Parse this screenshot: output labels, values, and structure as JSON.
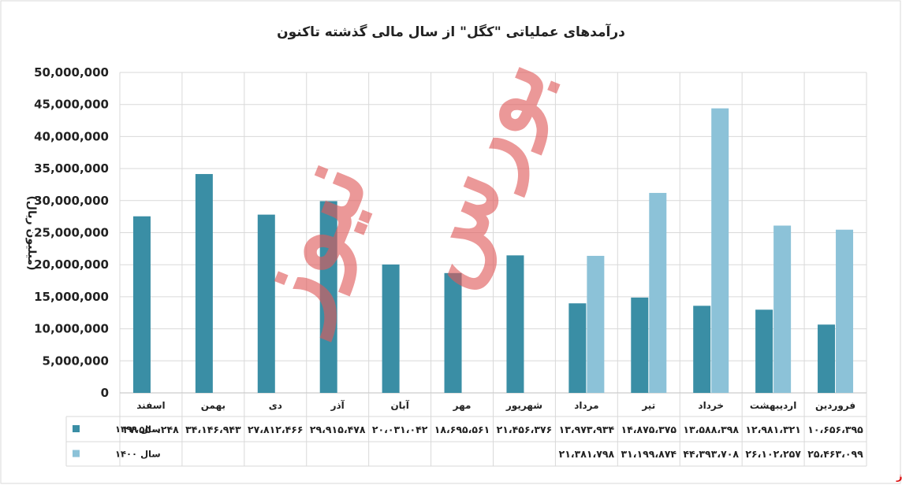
{
  "source": "بورس نیوز",
  "watermark": "بورس نیوز",
  "colors": {
    "s1399": "#3a8ea5",
    "s1400": "#8cc2d8",
    "watermark": "#e05a5a",
    "grid": "#d9d9d9",
    "source": "#dd1111"
  },
  "chart_data": {
    "type": "bar",
    "title": "درآمدهای عملیاتی \"کگل\" از سال مالی گذشته تاکنون",
    "ylabel": "(میلیون ریال)",
    "ylim": [
      0,
      50000000
    ],
    "yticks": [
      "0",
      "5,000,000",
      "10,000,000",
      "15,000,000",
      "20,000,000",
      "25,000,000",
      "30,000,000",
      "35,000,000",
      "40,000,000",
      "45,000,000",
      "50,000,000"
    ],
    "grid": true,
    "legend": "table-left",
    "categories": [
      "فروردین",
      "اردیبهشت",
      "خرداد",
      "تیر",
      "مرداد",
      "شهریور",
      "مهر",
      "آبان",
      "آذر",
      "دی",
      "بهمن",
      "اسفند"
    ],
    "series": [
      {
        "name": "سال ۱۳۹۹",
        "values": [
          10656395,
          12981321,
          13588398,
          14875375,
          13973934,
          21456376,
          18695561,
          20031042,
          29915478,
          27812466,
          34146943,
          27550248
        ],
        "labels": [
          "۱۰،۶۵۶،۳۹۵",
          "۱۲،۹۸۱،۳۲۱",
          "۱۳،۵۸۸،۳۹۸",
          "۱۴،۸۷۵،۳۷۵",
          "۱۳،۹۷۳،۹۳۴",
          "۲۱،۴۵۶،۳۷۶",
          "۱۸،۶۹۵،۵۶۱",
          "۲۰،۰۳۱،۰۴۲",
          "۲۹،۹۱۵،۴۷۸",
          "۲۷،۸۱۲،۴۶۶",
          "۳۴،۱۴۶،۹۴۳",
          "۲۷،۵۵۰،۲۴۸"
        ]
      },
      {
        "name": "سال ۱۴۰۰",
        "values": [
          25463099,
          26102257,
          44393708,
          31199874,
          21381798,
          null,
          null,
          null,
          null,
          null,
          null,
          null
        ],
        "labels": [
          "۲۵،۴۶۳،۰۹۹",
          "۲۶،۱۰۲،۲۵۷",
          "۴۴،۳۹۳،۷۰۸",
          "۳۱،۱۹۹،۸۷۴",
          "۲۱،۳۸۱،۷۹۸",
          "",
          "",
          "",
          "",
          "",
          "",
          ""
        ]
      }
    ]
  }
}
